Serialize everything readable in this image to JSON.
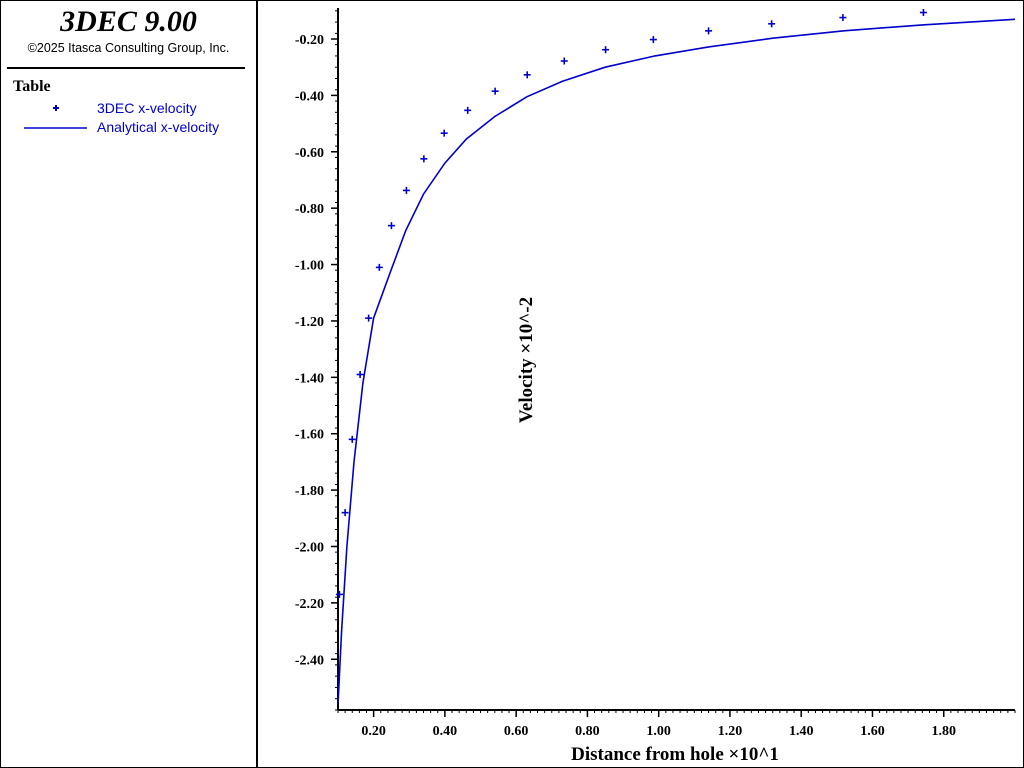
{
  "app": {
    "title": "3DEC 9.00",
    "copyright": "©2025 Itasca Consulting Group, Inc."
  },
  "legend": {
    "heading": "Table",
    "items": [
      {
        "label": "3DEC x-velocity",
        "marker": "plus",
        "color": "#0000cc"
      },
      {
        "label": "Analytical x-velocity",
        "marker": "line",
        "color": "#0000cc"
      }
    ]
  },
  "chart_data": {
    "type": "line",
    "xlabel": "Distance from hole ×10^1",
    "ylabel": "Velocity ×10^-2",
    "xlim": [
      0.1,
      2.0
    ],
    "ylim": [
      -2.58,
      -0.09
    ],
    "x_ticks": [
      0.2,
      0.4,
      0.6,
      0.8,
      1.0,
      1.2,
      1.4,
      1.6,
      1.8
    ],
    "x_tick_labels": [
      "0.20",
      "0.40",
      "0.60",
      "0.80",
      "1.00",
      "1.20",
      "1.40",
      "1.60",
      "1.80"
    ],
    "y_ticks": [
      -0.2,
      -0.4,
      -0.6,
      -0.8,
      -1.0,
      -1.2,
      -1.4,
      -1.6,
      -1.8,
      -2.0,
      -2.2,
      -2.4
    ],
    "y_tick_labels": [
      "-0.20",
      "-0.40",
      "-0.60",
      "-0.80",
      "-1.00",
      "-1.20",
      "-1.40",
      "-1.60",
      "-1.80",
      "-2.00",
      "-2.20",
      "-2.40"
    ],
    "grid": false,
    "legend_position": "left panel",
    "series": [
      {
        "name": "3DEC x-velocity",
        "style": "markers",
        "marker": "plus",
        "color": "#0000cc",
        "x": [
          0.104,
          0.12,
          0.14,
          0.162,
          0.186,
          0.216,
          0.25,
          0.292,
          0.341,
          0.398,
          0.464,
          0.541,
          0.631,
          0.735,
          0.851,
          0.985,
          1.14,
          1.317,
          1.517,
          1.743
        ],
        "y": [
          -2.17,
          -1.88,
          -1.62,
          -1.39,
          -1.19,
          -1.01,
          -0.862,
          -0.737,
          -0.625,
          -0.534,
          -0.453,
          -0.385,
          -0.327,
          -0.278,
          -0.238,
          -0.202,
          -0.171,
          -0.146,
          -0.124,
          -0.106
        ]
      },
      {
        "name": "Analytical x-velocity",
        "style": "line",
        "color": "#0000cc",
        "x": [
          0.1,
          0.11,
          0.125,
          0.145,
          0.17,
          0.2,
          0.246,
          0.29,
          0.34,
          0.4,
          0.46,
          0.54,
          0.63,
          0.73,
          0.85,
          0.99,
          1.14,
          1.32,
          1.52,
          1.74,
          2.0
        ],
        "y": [
          -2.56,
          -2.3,
          -2.0,
          -1.7,
          -1.42,
          -1.19,
          -1.03,
          -0.88,
          -0.75,
          -0.64,
          -0.555,
          -0.475,
          -0.405,
          -0.35,
          -0.3,
          -0.26,
          -0.228,
          -0.197,
          -0.171,
          -0.15,
          -0.13
        ]
      }
    ]
  }
}
